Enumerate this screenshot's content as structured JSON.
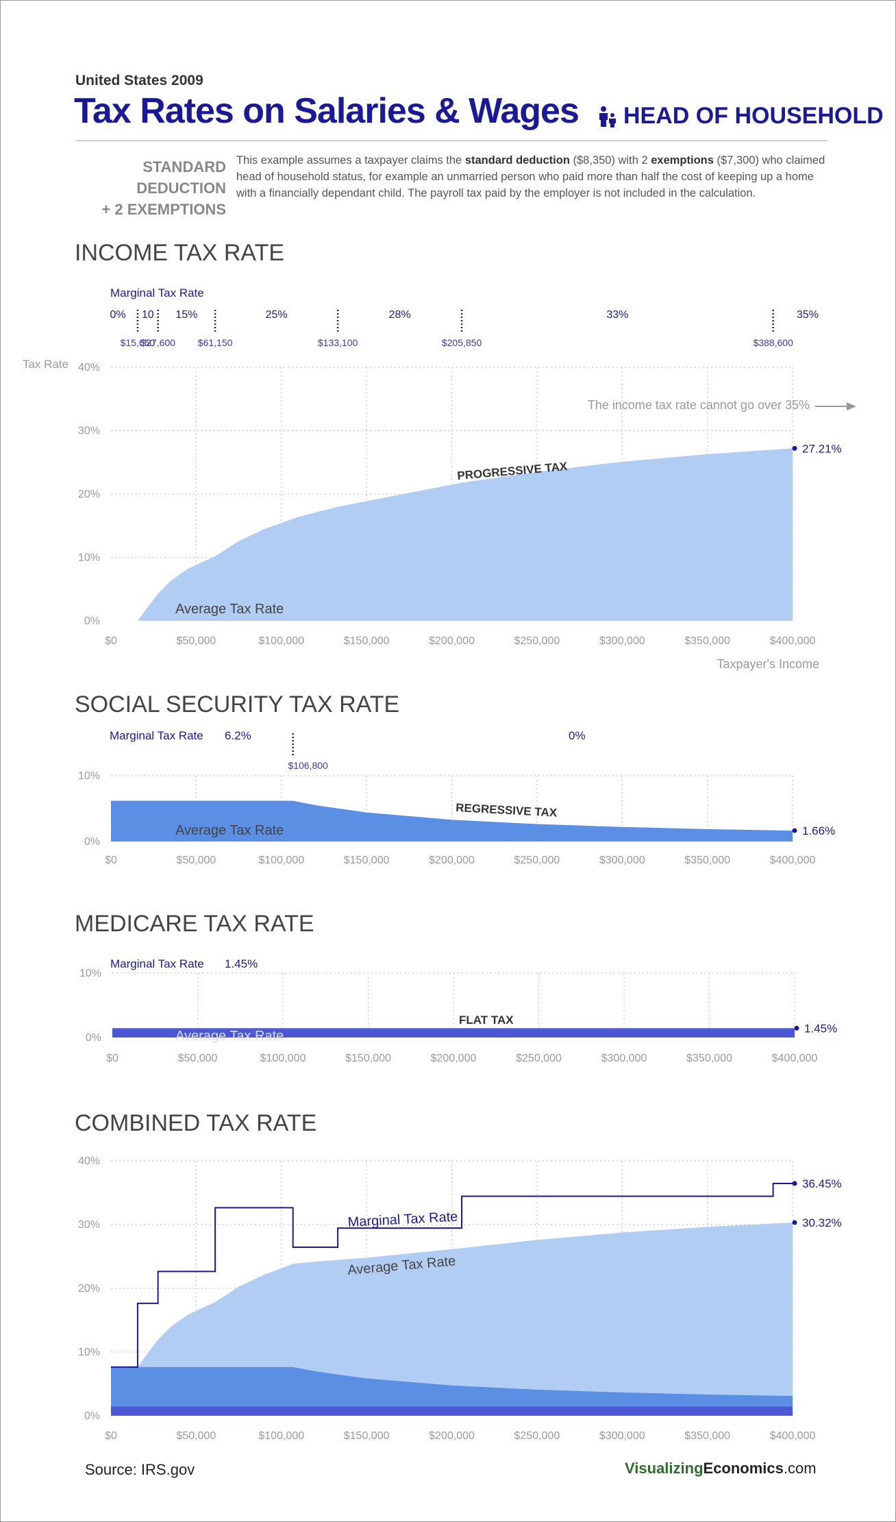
{
  "header": {
    "supertitle": "United States 2009",
    "title": "Tax Rates on Salaries & Wages",
    "filing_status": "HEAD OF HOUSEHOLD",
    "deduction_line1": "STANDARD DEDUCTION",
    "deduction_line2": "+ 2 EXEMPTIONS",
    "desc_1": "This example assumes a taxpayer claims the ",
    "desc_b1": "standard deduction",
    "desc_2": " ($8,350) with 2 ",
    "desc_b2": "exemptions",
    "desc_3": " ($7,300) who claimed head of household status, for example an unmarried person who paid more than half the cost of keeping up a home with a financially dependant child.  The payroll tax paid by the employer is not included in the calculation."
  },
  "colors": {
    "income_fill": "#b1cdf4",
    "social_fill": "#5a8fe3",
    "medicare_fill": "#4c57d6",
    "marginal_line": "#1a1a99",
    "grid": "#c8c8c8",
    "axis_text": "#9a9a9a"
  },
  "icons": {
    "family": "family-icon"
  },
  "marginal_brackets_income": {
    "label": "Marginal Tax Rate",
    "rates": [
      {
        "rate": "0%",
        "x": 0
      },
      {
        "rate": "10",
        "x": 15650
      },
      {
        "rate": "15%",
        "x": 27600
      },
      {
        "rate": "25%",
        "x": 61150
      },
      {
        "rate": "28%",
        "x": 133100
      },
      {
        "rate": "33%",
        "x": 205850
      },
      {
        "rate": "35%",
        "x": 388600
      }
    ],
    "thresholds": [
      {
        "label": "$15,650",
        "x": 15650
      },
      {
        "label": "$27,600",
        "x": 27600
      },
      {
        "label": "$61,150",
        "x": 61150
      },
      {
        "label": "$133,100",
        "x": 133100
      },
      {
        "label": "$205,850",
        "x": 205850
      },
      {
        "label": "$388,600",
        "x": 388600
      }
    ]
  },
  "chart_data": [
    {
      "id": "income",
      "type": "area",
      "title": "INCOME TAX RATE",
      "ylabel": "Tax Rate",
      "xlabel": "Taxpayer's Income",
      "xlim": [
        0,
        400000
      ],
      "ylim": [
        0,
        40
      ],
      "y_ticks": [
        "0%",
        "10%",
        "20%",
        "30%",
        "40%"
      ],
      "x_ticks": [
        "$0",
        "$50,000",
        "$100,000",
        "$150,000",
        "$200,000",
        "$250,000",
        "$300,000",
        "$350,000",
        "$400,000"
      ],
      "grid": true,
      "series": [
        {
          "name": "Average Tax Rate",
          "x": [
            0,
            15650,
            20000,
            27600,
            35000,
            45000,
            61150,
            75000,
            90000,
            110000,
            133100,
            160000,
            205850,
            250000,
            300000,
            350000,
            400000
          ],
          "y": [
            0,
            0,
            1.6,
            4.3,
            6.3,
            8.2,
            10.2,
            12.6,
            14.5,
            16.4,
            18.0,
            19.4,
            21.8,
            23.5,
            25.1,
            26.3,
            27.21
          ]
        }
      ],
      "annotations": {
        "curve_label": "PROGRESSIVE TAX",
        "cap_note": "The income tax rate cannot go over 35%",
        "end_value": "27.21%"
      }
    },
    {
      "id": "social",
      "type": "area",
      "title": "SOCIAL SECURITY TAX RATE",
      "xlim": [
        0,
        400000
      ],
      "ylim": [
        0,
        10
      ],
      "y_ticks": [
        "0%",
        "10%"
      ],
      "x_ticks": [
        "$0",
        "$50,000",
        "$100,000",
        "$150,000",
        "$200,000",
        "$250,000",
        "$300,000",
        "$350,000",
        "$400,000"
      ],
      "grid": true,
      "marginal": {
        "label": "Marginal Tax Rate",
        "rate_low": "6.2%",
        "rate_high": "0%",
        "threshold": "$106,800",
        "threshold_x": 106800
      },
      "series": [
        {
          "name": "Average Tax Rate",
          "x": [
            0,
            106800,
            120000,
            150000,
            200000,
            250000,
            300000,
            350000,
            400000
          ],
          "y": [
            6.2,
            6.2,
            5.52,
            4.41,
            3.31,
            2.65,
            2.21,
            1.89,
            1.66
          ]
        }
      ],
      "annotations": {
        "curve_label": "REGRESSIVE TAX",
        "end_value": "1.66%"
      }
    },
    {
      "id": "medicare",
      "type": "area",
      "title": "MEDICARE TAX RATE",
      "xlim": [
        0,
        400000
      ],
      "ylim": [
        0,
        10
      ],
      "y_ticks": [
        "0%",
        "10%"
      ],
      "x_ticks": [
        "$0",
        "$50,000",
        "$100,000",
        "$150,000",
        "$200,000",
        "$250,000",
        "$300,000",
        "$350,000",
        "$400,000"
      ],
      "grid": true,
      "marginal": {
        "label": "Marginal Tax Rate",
        "rate": "1.45%"
      },
      "series": [
        {
          "name": "Average Tax Rate",
          "x": [
            0,
            400000
          ],
          "y": [
            1.45,
            1.45
          ]
        }
      ],
      "annotations": {
        "curve_label": "FLAT TAX",
        "end_value": "1.45%"
      }
    },
    {
      "id": "combined",
      "type": "area",
      "title": "COMBINED TAX RATE",
      "xlim": [
        0,
        400000
      ],
      "ylim": [
        0,
        40
      ],
      "y_ticks": [
        "0%",
        "10%",
        "20%",
        "30%",
        "40%"
      ],
      "x_ticks": [
        "$0",
        "$50,000",
        "$100,000",
        "$150,000",
        "$200,000",
        "$250,000",
        "$300,000",
        "$350,000",
        "$400,000"
      ],
      "grid": true,
      "series": [
        {
          "name": "Marginal Tax Rate",
          "type": "step",
          "x": [
            0,
            15650,
            15650,
            27600,
            27600,
            61150,
            61150,
            106800,
            106800,
            133100,
            133100,
            205850,
            205850,
            388600,
            388600,
            400000
          ],
          "y": [
            7.65,
            7.65,
            17.65,
            17.65,
            22.65,
            22.65,
            32.65,
            32.65,
            26.45,
            26.45,
            29.45,
            29.45,
            34.45,
            34.45,
            36.45,
            36.45
          ]
        },
        {
          "name": "Average Tax Rate",
          "x": [
            0,
            15650,
            20000,
            27600,
            35000,
            45000,
            61150,
            75000,
            90000,
            106800,
            120000,
            150000,
            205850,
            250000,
            300000,
            350000,
            400000
          ],
          "y": [
            7.65,
            7.65,
            9.25,
            11.95,
            13.95,
            15.85,
            17.85,
            20.25,
            22.15,
            23.85,
            24.2,
            24.8,
            26.3,
            27.6,
            28.76,
            29.64,
            30.32
          ]
        }
      ],
      "annotations": {
        "marginal_end": "36.45%",
        "average_end": "30.32%"
      }
    }
  ],
  "footer": {
    "source": "Source:  IRS.gov",
    "brand_1": "Visualizing",
    "brand_2": "Economics",
    "brand_3": ".com"
  }
}
